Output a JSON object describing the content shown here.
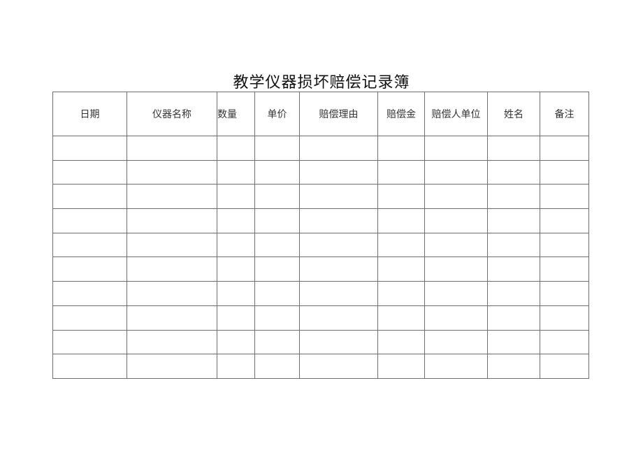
{
  "title": "教学仪器损坏赔偿记录簿",
  "headers": [
    "日期",
    "仪器名称",
    "数量",
    "单价",
    "赔偿理由",
    "赔偿金",
    "赔偿人单位",
    "姓名",
    "备注"
  ],
  "rows": [
    [
      "",
      "",
      "",
      "",
      "",
      "",
      "",
      "",
      ""
    ],
    [
      "",
      "",
      "",
      "",
      "",
      "",
      "",
      "",
      ""
    ],
    [
      "",
      "",
      "",
      "",
      "",
      "",
      "",
      "",
      ""
    ],
    [
      "",
      "",
      "",
      "",
      "",
      "",
      "",
      "",
      ""
    ],
    [
      "",
      "",
      "",
      "",
      "",
      "",
      "",
      "",
      ""
    ],
    [
      "",
      "",
      "",
      "",
      "",
      "",
      "",
      "",
      ""
    ],
    [
      "",
      "",
      "",
      "",
      "",
      "",
      "",
      "",
      ""
    ],
    [
      "",
      "",
      "",
      "",
      "",
      "",
      "",
      "",
      ""
    ],
    [
      "",
      "",
      "",
      "",
      "",
      "",
      "",
      "",
      ""
    ],
    [
      "",
      "",
      "",
      "",
      "",
      "",
      "",
      "",
      ""
    ]
  ]
}
